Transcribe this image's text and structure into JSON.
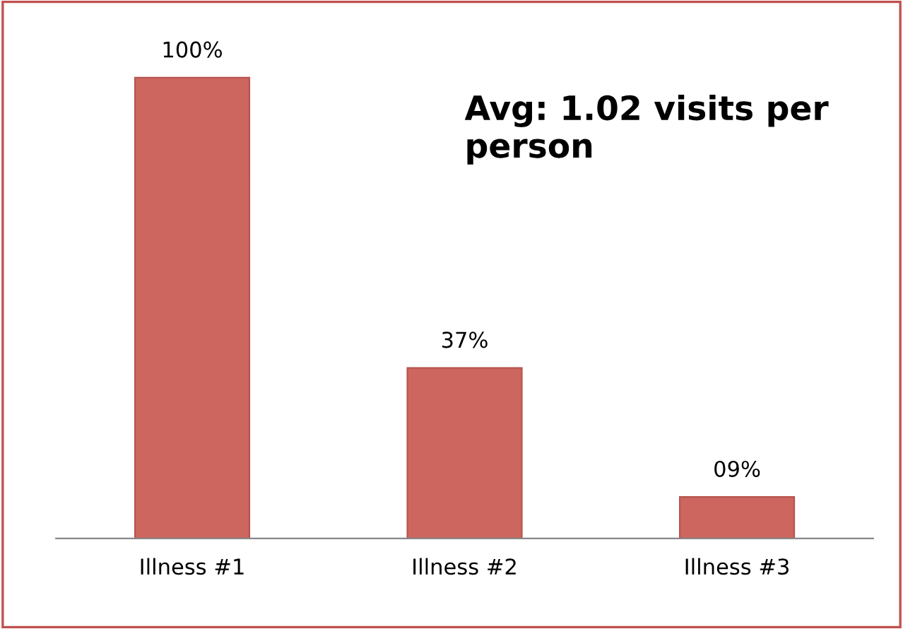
{
  "chart_data": {
    "type": "bar",
    "categories": [
      "Illness #1",
      "Illness #2",
      "Illness #3"
    ],
    "values": [
      100,
      37,
      9
    ],
    "value_labels": [
      "100%",
      "37%",
      "09%"
    ],
    "color": "#cd665f",
    "annotations": [
      "Avg: 1.02 visits per person"
    ],
    "grid": false,
    "legend": false
  }
}
